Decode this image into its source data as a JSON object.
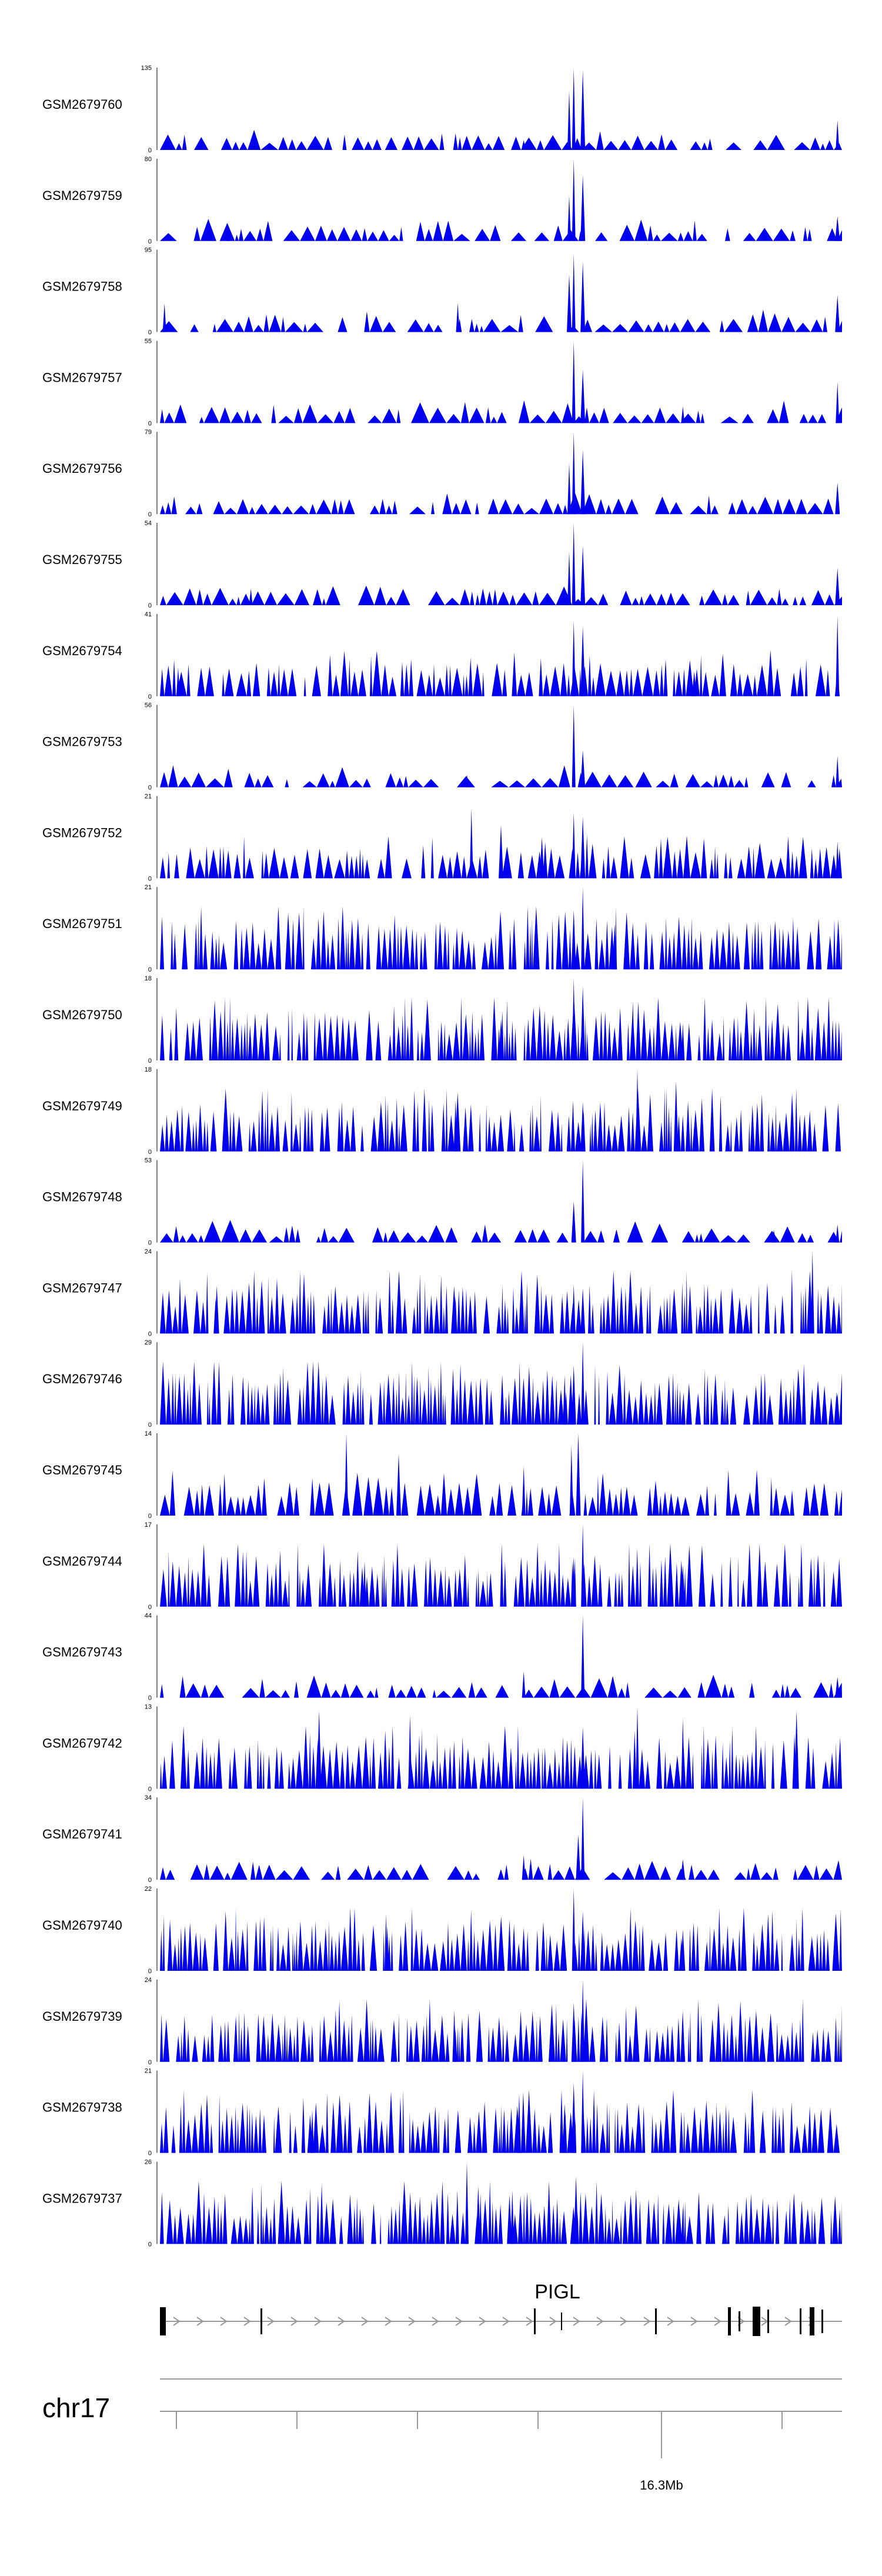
{
  "chart_data": {
    "type": "area",
    "title": "",
    "x_unit": "Mb",
    "xlim": [
      16.07,
      16.37
    ],
    "chromosome": "chr17",
    "axis_label": "16.3Mb",
    "colors": {
      "signal": "#0000ee",
      "axis": "#000000",
      "gene": "#000000",
      "gene_line": "#999999"
    },
    "gene": {
      "name": "PIGL"
    },
    "tracks": [
      {
        "name": "GSM2679760",
        "ymax": "135",
        "ymin": "0",
        "pattern": "sparse",
        "peaks": [
          [
            16.252,
            1.0
          ],
          [
            16.256,
            0.97
          ],
          [
            16.25,
            0.72
          ],
          [
            16.194,
            0.2
          ],
          [
            16.368,
            0.36
          ],
          [
            16.23,
            0.12
          ]
        ]
      },
      {
        "name": "GSM2679759",
        "ymax": "80",
        "ymin": "0",
        "pattern": "sparse",
        "peaks": [
          [
            16.252,
            1.0
          ],
          [
            16.256,
            0.8
          ],
          [
            16.25,
            0.55
          ],
          [
            16.368,
            0.3
          ],
          [
            16.1,
            0.12
          ]
        ]
      },
      {
        "name": "GSM2679758",
        "ymax": "95",
        "ymin": "0",
        "pattern": "sparse",
        "peaks": [
          [
            16.252,
            0.95
          ],
          [
            16.256,
            0.85
          ],
          [
            16.201,
            0.35
          ],
          [
            16.368,
            0.45
          ],
          [
            16.072,
            0.35
          ],
          [
            16.25,
            0.7
          ]
        ]
      },
      {
        "name": "GSM2679757",
        "ymax": "55",
        "ymin": "0",
        "pattern": "sparse",
        "peaks": [
          [
            16.252,
            1.0
          ],
          [
            16.256,
            0.65
          ],
          [
            16.368,
            0.5
          ],
          [
            16.12,
            0.22
          ],
          [
            16.3,
            0.2
          ]
        ]
      },
      {
        "name": "GSM2679756",
        "ymax": "79",
        "ymin": "0",
        "pattern": "sparse",
        "peaks": [
          [
            16.252,
            1.0
          ],
          [
            16.256,
            0.78
          ],
          [
            16.25,
            0.62
          ],
          [
            16.368,
            0.38
          ],
          [
            16.19,
            0.15
          ]
        ]
      },
      {
        "name": "GSM2679755",
        "ymax": "54",
        "ymin": "0",
        "pattern": "sparse",
        "peaks": [
          [
            16.252,
            1.0
          ],
          [
            16.256,
            0.72
          ],
          [
            16.25,
            0.65
          ],
          [
            16.368,
            0.45
          ],
          [
            16.11,
            0.2
          ]
        ]
      },
      {
        "name": "GSM2679754",
        "ymax": "41",
        "ymin": "0",
        "pattern": "medium",
        "peaks": [
          [
            16.252,
            0.92
          ],
          [
            16.256,
            0.85
          ],
          [
            16.368,
            0.98
          ],
          [
            16.305,
            0.3
          ],
          [
            16.078,
            0.35
          ]
        ]
      },
      {
        "name": "GSM2679753",
        "ymax": "56",
        "ymin": "0",
        "pattern": "sparse",
        "peaks": [
          [
            16.252,
            1.0
          ],
          [
            16.256,
            0.45
          ],
          [
            16.368,
            0.38
          ],
          [
            16.205,
            0.15
          ]
        ]
      },
      {
        "name": "GSM2679752",
        "ymax": "21",
        "ymin": "0",
        "pattern": "medium",
        "peaks": [
          [
            16.252,
            0.8
          ],
          [
            16.256,
            0.75
          ],
          [
            16.207,
            0.85
          ],
          [
            16.22,
            0.65
          ],
          [
            16.368,
            0.45
          ],
          [
            16.238,
            0.5
          ]
        ]
      },
      {
        "name": "GSM2679751",
        "ymax": "21",
        "ymin": "0",
        "pattern": "dense",
        "peaks": [
          [
            16.256,
            1.0
          ],
          [
            16.252,
            0.72
          ],
          [
            16.262,
            0.62
          ],
          [
            16.27,
            0.55
          ],
          [
            16.36,
            0.4
          ]
        ]
      },
      {
        "name": "GSM2679750",
        "ymax": "18",
        "ymin": "0",
        "pattern": "dense",
        "peaks": [
          [
            16.252,
            1.0
          ],
          [
            16.256,
            0.9
          ],
          [
            16.278,
            0.72
          ],
          [
            16.22,
            0.5
          ],
          [
            16.3,
            0.45
          ]
        ]
      },
      {
        "name": "GSM2679749",
        "ymax": "18",
        "ymin": "0",
        "pattern": "dense",
        "peaks": [
          [
            16.28,
            1.0
          ],
          [
            16.297,
            0.85
          ],
          [
            16.2,
            0.62
          ],
          [
            16.256,
            0.6
          ],
          [
            16.15,
            0.6
          ]
        ]
      },
      {
        "name": "GSM2679748",
        "ymax": "53",
        "ymin": "0",
        "pattern": "sparse",
        "peaks": [
          [
            16.256,
            1.0
          ],
          [
            16.252,
            0.5
          ],
          [
            16.368,
            0.22
          ],
          [
            16.34,
            0.15
          ]
        ]
      },
      {
        "name": "GSM2679747",
        "ymax": "24",
        "ymin": "0",
        "pattern": "dense",
        "peaks": [
          [
            16.357,
            1.0
          ],
          [
            16.095,
            0.58
          ],
          [
            16.252,
            0.6
          ],
          [
            16.256,
            0.55
          ],
          [
            16.2,
            0.45
          ]
        ]
      },
      {
        "name": "GSM2679746",
        "ymax": "29",
        "ymin": "0",
        "pattern": "dense",
        "peaks": [
          [
            16.256,
            1.0
          ],
          [
            16.252,
            0.72
          ],
          [
            16.248,
            0.6
          ],
          [
            16.368,
            0.38
          ],
          [
            16.3,
            0.3
          ]
        ]
      },
      {
        "name": "GSM2679745",
        "ymax": "14",
        "ymin": "0",
        "pattern": "medium",
        "peaks": [
          [
            16.152,
            1.0
          ],
          [
            16.254,
            1.0
          ],
          [
            16.251,
            0.85
          ],
          [
            16.175,
            0.75
          ],
          [
            16.23,
            0.6
          ],
          [
            16.32,
            0.55
          ]
        ]
      },
      {
        "name": "GSM2679744",
        "ymax": "17",
        "ymin": "0",
        "pattern": "dense",
        "peaks": [
          [
            16.256,
            1.0
          ],
          [
            16.252,
            0.6
          ],
          [
            16.16,
            0.55
          ],
          [
            16.3,
            0.5
          ],
          [
            16.2,
            0.45
          ]
        ]
      },
      {
        "name": "GSM2679743",
        "ymax": "44",
        "ymin": "0",
        "pattern": "sparse",
        "peaks": [
          [
            16.256,
            1.0
          ],
          [
            16.368,
            0.25
          ],
          [
            16.23,
            0.32
          ],
          [
            16.13,
            0.2
          ]
        ]
      },
      {
        "name": "GSM2679742",
        "ymax": "13",
        "ymin": "0",
        "pattern": "dense",
        "peaks": [
          [
            16.28,
            1.0
          ],
          [
            16.14,
            0.95
          ],
          [
            16.18,
            0.9
          ],
          [
            16.35,
            0.95
          ],
          [
            16.3,
            0.85
          ],
          [
            16.256,
            0.75
          ]
        ]
      },
      {
        "name": "GSM2679741",
        "ymax": "34",
        "ymin": "0",
        "pattern": "sparse",
        "peaks": [
          [
            16.256,
            1.0
          ],
          [
            16.254,
            0.55
          ],
          [
            16.23,
            0.3
          ],
          [
            16.3,
            0.25
          ]
        ]
      },
      {
        "name": "GSM2679740",
        "ymax": "22",
        "ymin": "0",
        "pattern": "dense",
        "peaks": [
          [
            16.252,
            1.0
          ],
          [
            16.256,
            0.72
          ],
          [
            16.17,
            0.55
          ],
          [
            16.3,
            0.5
          ],
          [
            16.23,
            0.45
          ]
        ]
      },
      {
        "name": "GSM2679739",
        "ymax": "24",
        "ymin": "0",
        "pattern": "dense",
        "peaks": [
          [
            16.256,
            1.0
          ],
          [
            16.252,
            0.72
          ],
          [
            16.1,
            0.5
          ],
          [
            16.3,
            0.45
          ],
          [
            16.2,
            0.4
          ]
        ]
      },
      {
        "name": "GSM2679738",
        "ymax": "21",
        "ymin": "0",
        "pattern": "dense",
        "peaks": [
          [
            16.256,
            1.0
          ],
          [
            16.252,
            0.85
          ],
          [
            16.228,
            0.72
          ],
          [
            16.248,
            0.6
          ],
          [
            16.137,
            0.52
          ]
        ]
      },
      {
        "name": "GSM2679737",
        "ymax": "26",
        "ymin": "0",
        "pattern": "dense",
        "peaks": [
          [
            16.205,
            1.0
          ],
          [
            16.253,
            0.82
          ],
          [
            16.225,
            0.65
          ],
          [
            16.21,
            0.7
          ],
          [
            16.3,
            0.45
          ]
        ]
      }
    ]
  }
}
